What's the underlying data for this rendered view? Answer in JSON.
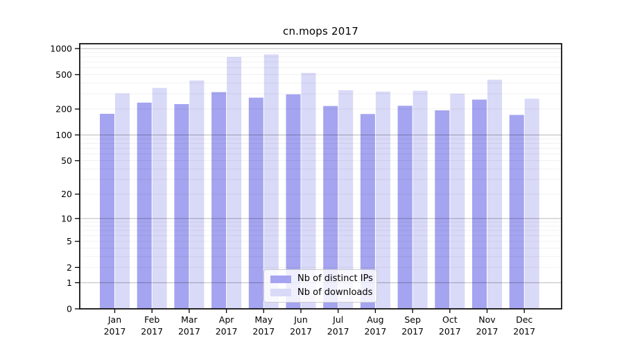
{
  "title": "cn.mops 2017",
  "chart_data": {
    "type": "bar",
    "title": "cn.mops 2017",
    "categories": [
      "Jan 2017",
      "Feb 2017",
      "Mar 2017",
      "Apr 2017",
      "May 2017",
      "Jun 2017",
      "Jul 2017",
      "Aug 2017",
      "Sep 2017",
      "Oct 2017",
      "Nov 2017",
      "Dec 2017"
    ],
    "x_months": [
      "Jan",
      "Feb",
      "Mar",
      "Apr",
      "May",
      "Jun",
      "Jul",
      "Aug",
      "Sep",
      "Oct",
      "Nov",
      "Dec"
    ],
    "x_year": "2017",
    "series": [
      {
        "name": "Nb of distinct IPs",
        "color": "#a4a4f0",
        "values": [
          176,
          237,
          228,
          314,
          271,
          296,
          217,
          175,
          218,
          193,
          257,
          171
        ]
      },
      {
        "name": "Nb of downloads",
        "color": "#d9d9f8",
        "values": [
          303,
          351,
          428,
          800,
          856,
          524,
          330,
          318,
          326,
          301,
          437,
          263
        ]
      }
    ],
    "xlabel": "",
    "ylabel": "",
    "yscale": "log1p",
    "y_ticks": [
      0,
      1,
      2,
      5,
      10,
      20,
      50,
      100,
      200,
      500,
      1000
    ],
    "ylim": [
      0,
      1130
    ],
    "grid": "horizontal log minor+major gridlines",
    "legend_position": "lower center inside plot"
  },
  "colors": {
    "bar_dark": "#a4a4f0",
    "bar_light": "#d9d9f8",
    "grid_major": "rgba(0,0,0,0.28)",
    "grid_minor": "rgba(0,0,0,0.06)",
    "frame": "#111111",
    "text": "#000000",
    "legend_border": "#cccccc"
  }
}
